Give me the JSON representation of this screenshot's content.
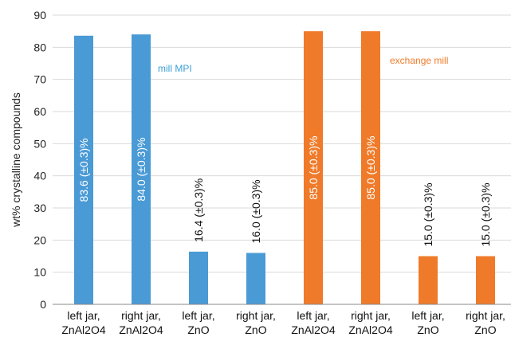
{
  "chart_data": {
    "type": "bar",
    "ylabel": "wt% crystalline compounds",
    "ylim": [
      0,
      90
    ],
    "yticks": [
      0,
      10,
      20,
      30,
      40,
      50,
      60,
      70,
      80,
      90
    ],
    "grid": true,
    "categories": [
      [
        "left jar,",
        "ZnAl2O4"
      ],
      [
        "right jar,",
        "ZnAl2O4"
      ],
      [
        "left jar,",
        "ZnO"
      ],
      [
        "right jar,",
        "ZnO"
      ],
      [
        "left jar,",
        "ZnAl2O4"
      ],
      [
        "right jar,",
        "ZnAl2O4"
      ],
      [
        "left jar,",
        "ZnO"
      ],
      [
        "right jar,",
        "ZnO"
      ]
    ],
    "values": [
      83.6,
      84.0,
      16.4,
      16.0,
      85.0,
      85.0,
      15.0,
      15.0
    ],
    "data_labels": [
      "83.6 (±0.3)%",
      "84.0 (±0.3)%",
      "16.4 (±0.3)%",
      "16.0 (±0.3)%",
      "85.0 (±0.3)%",
      "85.0 (±0.3)%",
      "15.0 (±0.3)%",
      "15.0 (±0.3)%"
    ],
    "bar_colors": [
      "#4a9ad6",
      "#4a9ad6",
      "#4a9ad6",
      "#4a9ad6",
      "#ef7b2a",
      "#ef7b2a",
      "#ef7b2a",
      "#ef7b2a"
    ],
    "annotations": [
      {
        "text": "mill MPI",
        "color": "#3b9fd6"
      },
      {
        "text": "exchange mill",
        "color": "#ef7b2a"
      }
    ]
  }
}
